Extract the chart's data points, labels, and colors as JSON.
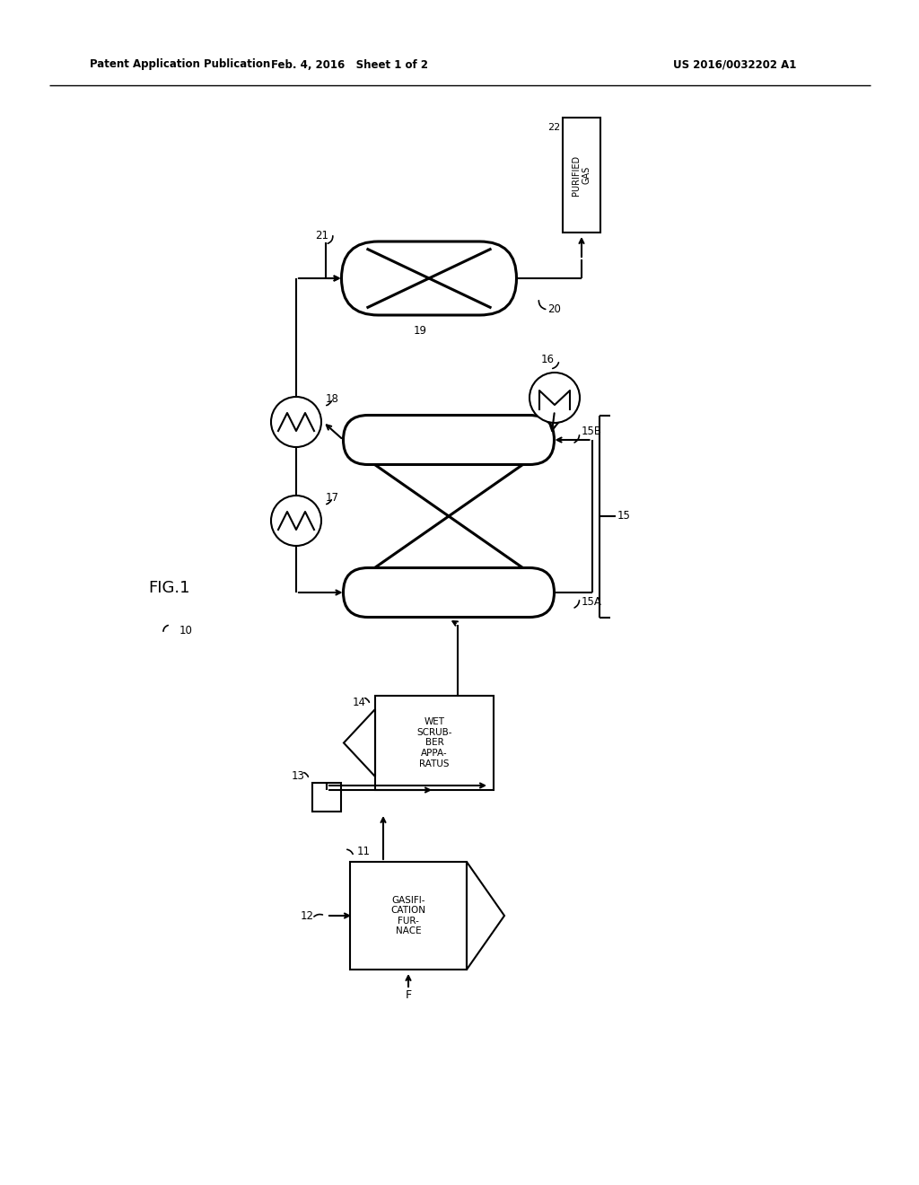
{
  "bg_color": "#ffffff",
  "header_left": "Patent Application Publication",
  "header_mid": "Feb. 4, 2016   Sheet 1 of 2",
  "header_right": "US 2016/0032202 A1",
  "fig_label": "FIG.1"
}
